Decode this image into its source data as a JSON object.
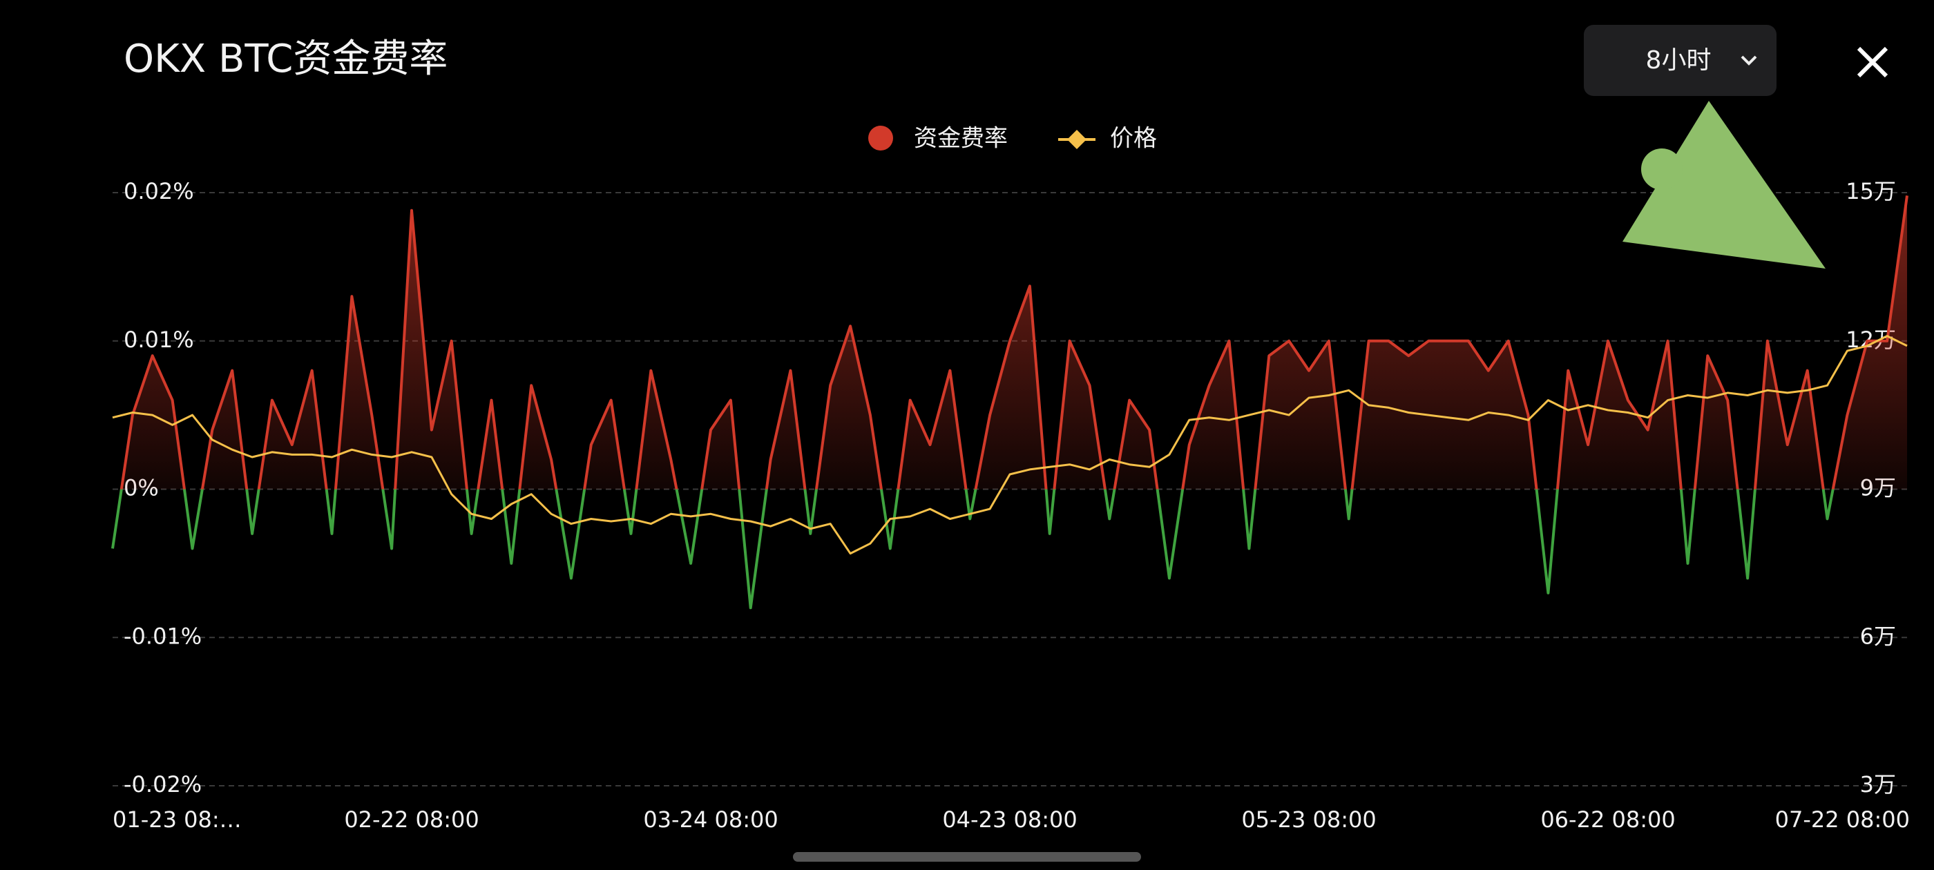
{
  "controls": {
    "interval": "8小时"
  },
  "chart_data": {
    "type": "line",
    "title": "OKX BTC资金费率",
    "categories": [
      "01-23 08:…",
      null,
      null,
      null,
      null,
      null,
      null,
      null,
      null,
      null,
      null,
      null,
      null,
      null,
      null,
      "02-22 08:00",
      null,
      null,
      null,
      null,
      null,
      null,
      null,
      null,
      null,
      null,
      null,
      null,
      null,
      null,
      "03-24 08:00",
      null,
      null,
      null,
      null,
      null,
      null,
      null,
      null,
      null,
      null,
      null,
      null,
      null,
      null,
      "04-23 08:00",
      null,
      null,
      null,
      null,
      null,
      null,
      null,
      null,
      null,
      null,
      null,
      null,
      null,
      null,
      "05-23 08:00",
      null,
      null,
      null,
      null,
      null,
      null,
      null,
      null,
      null,
      null,
      null,
      null,
      null,
      null,
      "06-22 08:00",
      null,
      null,
      null,
      null,
      null,
      null,
      null,
      null,
      null,
      null,
      null,
      null,
      null,
      null,
      "07-22 08:00"
    ],
    "series": [
      {
        "name": "资金费率",
        "color": "#d23a2a",
        "negative_color": "#3fa33f",
        "values": [
          -0.004,
          0.005,
          0.009,
          0.006,
          -0.004,
          0.004,
          0.008,
          -0.003,
          0.006,
          0.003,
          0.008,
          -0.003,
          0.013,
          0.005,
          -0.004,
          0.0188,
          0.004,
          0.01,
          -0.003,
          0.006,
          -0.005,
          0.007,
          0.002,
          -0.006,
          0.003,
          0.006,
          -0.003,
          0.008,
          0.002,
          -0.005,
          0.004,
          0.006,
          -0.008,
          0.002,
          0.008,
          -0.003,
          0.007,
          0.011,
          0.005,
          -0.004,
          0.006,
          0.003,
          0.008,
          -0.002,
          0.005,
          0.01,
          0.0137,
          -0.003,
          0.01,
          0.007,
          -0.002,
          0.006,
          0.004,
          -0.006,
          0.003,
          0.007,
          0.01,
          -0.004,
          0.009,
          0.01,
          0.008,
          0.01,
          -0.002,
          0.01,
          0.01,
          0.009,
          0.01,
          0.01,
          0.01,
          0.008,
          0.01,
          0.005,
          -0.007,
          0.008,
          0.003,
          0.01,
          0.006,
          0.004,
          0.01,
          -0.005,
          0.009,
          0.006,
          -0.006,
          0.01,
          0.003,
          0.008,
          -0.002,
          0.005,
          0.01,
          0.01,
          0.0198
        ]
      },
      {
        "name": "价格",
        "color": "#f5c04a",
        "axis": "y2",
        "values": [
          104500,
          105500,
          105000,
          103000,
          105000,
          100000,
          98000,
          96500,
          97500,
          97000,
          97000,
          96500,
          98000,
          97000,
          96500,
          97500,
          96500,
          89000,
          85000,
          84000,
          87000,
          89000,
          85000,
          83000,
          84000,
          83500,
          84000,
          83000,
          85000,
          84500,
          85000,
          84000,
          83500,
          82500,
          84000,
          82000,
          83000,
          77000,
          79000,
          84000,
          84500,
          86000,
          84000,
          85000,
          86000,
          93000,
          94000,
          94500,
          95000,
          94000,
          96000,
          95000,
          94500,
          97000,
          104000,
          104500,
          104000,
          105000,
          106000,
          105000,
          108500,
          109000,
          110000,
          107000,
          106500,
          105500,
          105000,
          104500,
          104000,
          105500,
          105000,
          104000,
          108000,
          106000,
          107000,
          106000,
          105500,
          104500,
          108000,
          109000,
          108500,
          109500,
          109000,
          110000,
          109500,
          110000,
          111000,
          118000,
          119000,
          121000,
          119000
        ]
      }
    ],
    "ylim": [
      -0.02,
      0.02
    ],
    "yticks": [
      {
        "value": -0.02,
        "label": "-0.02%"
      },
      {
        "value": -0.01,
        "label": "-0.01%"
      },
      {
        "value": 0,
        "label": "0%"
      },
      {
        "value": 0.01,
        "label": "0.01%"
      },
      {
        "value": 0.02,
        "label": "0.02%"
      }
    ],
    "y2lim": [
      30000,
      150000
    ],
    "y2ticks": [
      {
        "value": 30000,
        "label": "3万"
      },
      {
        "value": 60000,
        "label": "6万"
      },
      {
        "value": 90000,
        "label": "9万"
      },
      {
        "value": 120000,
        "label": "12万"
      },
      {
        "value": 150000,
        "label": "15万"
      }
    ],
    "grid": true
  }
}
